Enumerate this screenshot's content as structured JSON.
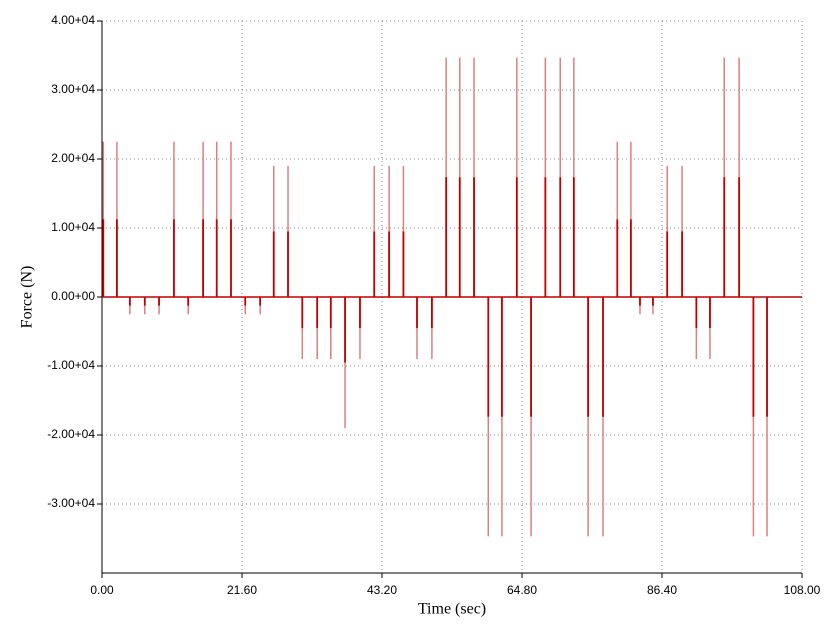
{
  "chart_data": {
    "type": "stem",
    "x_label": "Time (sec)",
    "y_label": "Force (N)",
    "color": "#d98082",
    "inner_color": "#c00000",
    "grid": true,
    "xlim": [
      0,
      108
    ],
    "ylim": [
      -40000,
      40000
    ],
    "xticks": [
      {
        "value": 0,
        "label": "0.00"
      },
      {
        "value": 21.6,
        "label": "21.60"
      },
      {
        "value": 43.2,
        "label": "43.20"
      },
      {
        "value": 64.8,
        "label": "64.80"
      },
      {
        "value": 86.4,
        "label": "86.40"
      },
      {
        "value": 108,
        "label": "108.00"
      }
    ],
    "yticks": [
      {
        "value": 40000,
        "label": "4.00+04"
      },
      {
        "value": 30000,
        "label": "3.00+04"
      },
      {
        "value": 20000,
        "label": "2.00+04"
      },
      {
        "value": 10000,
        "label": "1.00+04"
      },
      {
        "value": 0,
        "label": "0.00+00"
      },
      {
        "value": -10000,
        "label": "-1.00+04"
      },
      {
        "value": -20000,
        "label": "-2.00+04"
      },
      {
        "value": -30000,
        "label": "-3.00+04"
      }
    ],
    "x": [
      0.2,
      2.3,
      4.3,
      6.6,
      8.8,
      11.1,
      13.3,
      15.6,
      17.7,
      19.9,
      22.1,
      24.4,
      26.5,
      28.7,
      30.9,
      33.2,
      35.3,
      37.5,
      39.8,
      42.0,
      44.3,
      46.5,
      48.6,
      50.9,
      53.1,
      55.2,
      57.4,
      59.6,
      61.7,
      64.0,
      66.2,
      68.4,
      70.7,
      72.8,
      75.0,
      77.3,
      79.5,
      81.6,
      83.0,
      85.0,
      87.2,
      89.5,
      91.7,
      93.8,
      96.0,
      98.3,
      100.5,
      102.6
    ],
    "values": [
      22500,
      22500,
      -2500,
      -2500,
      -2500,
      22500,
      -2500,
      22500,
      22500,
      22500,
      -2500,
      -2500,
      19000,
      19000,
      -9000,
      -9000,
      -9000,
      -19000,
      -9000,
      19000,
      19000,
      19000,
      -9000,
      -9000,
      34700,
      34700,
      34700,
      -34700,
      -34700,
      34700,
      -34700,
      34700,
      34700,
      34700,
      -34700,
      -34700,
      22500,
      22500,
      -2500,
      -2500,
      19000,
      19000,
      -9000,
      -9000,
      34700,
      34700,
      -34700,
      -34700
    ]
  }
}
